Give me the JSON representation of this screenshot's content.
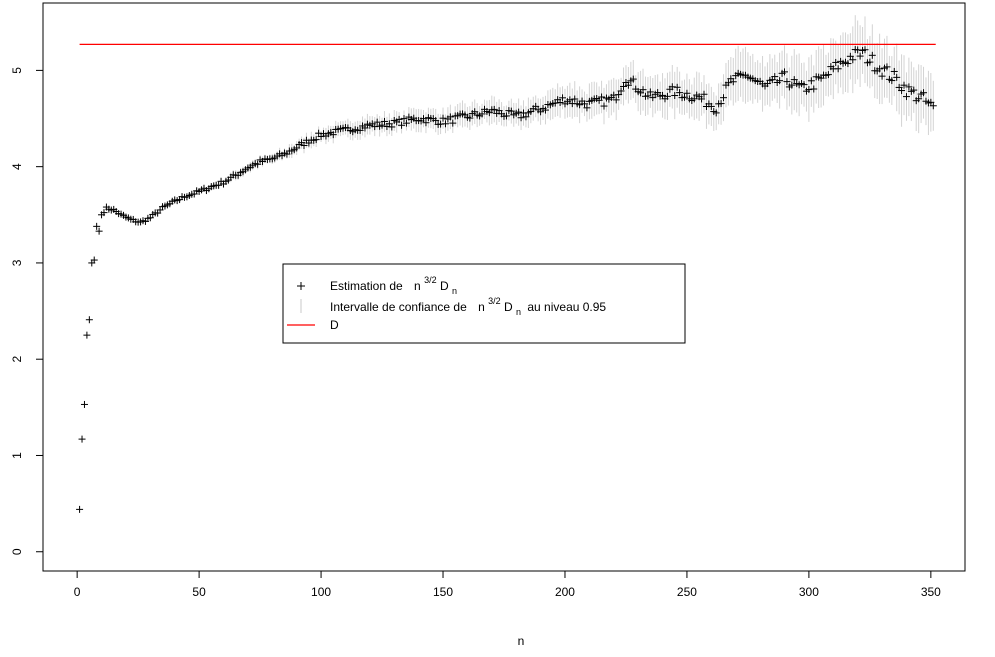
{
  "chart_data": {
    "type": "scatter",
    "title": "",
    "xlabel": "n",
    "ylabel": "",
    "xlim": [
      -14,
      364
    ],
    "ylim": [
      -0.2,
      5.7
    ],
    "x_ticks": [
      0,
      50,
      100,
      150,
      200,
      250,
      300,
      350
    ],
    "y_ticks": [
      0,
      1,
      2,
      3,
      4,
      5
    ],
    "grid": false,
    "legend_position": "center",
    "legend": {
      "estimation": {
        "prefix": "Estimation de",
        "n": "n",
        "sup": "3/2",
        "D": "D",
        "sub": "n",
        "suffix": ""
      },
      "interval": {
        "prefix": "Intervalle de confiance de",
        "n": "n",
        "sup": "3/2",
        "D": "D",
        "sub": "n",
        "suffix": "au niveau 0.95"
      },
      "reference": {
        "label": "D"
      }
    },
    "reference_line": {
      "name": "D",
      "y": 5.27,
      "x_range": [
        1,
        352
      ],
      "color": "#ff0000"
    },
    "series_estimation": {
      "marker": "+",
      "color": "#000000",
      "x_first": 1,
      "x_last": 351,
      "anchors": [
        [
          1,
          0.44
        ],
        [
          2,
          1.17
        ],
        [
          3,
          1.53
        ],
        [
          4,
          2.25
        ],
        [
          5,
          2.41
        ],
        [
          6,
          3.0
        ],
        [
          7,
          3.03
        ],
        [
          8,
          3.38
        ],
        [
          9,
          3.33
        ],
        [
          10,
          3.5
        ],
        [
          12,
          3.57
        ],
        [
          15,
          3.55
        ],
        [
          18,
          3.5
        ],
        [
          22,
          3.45
        ],
        [
          26,
          3.42
        ],
        [
          30,
          3.47
        ],
        [
          35,
          3.57
        ],
        [
          40,
          3.64
        ],
        [
          45,
          3.7
        ],
        [
          50,
          3.74
        ],
        [
          55,
          3.79
        ],
        [
          60,
          3.84
        ],
        [
          65,
          3.91
        ],
        [
          70,
          3.99
        ],
        [
          75,
          4.05
        ],
        [
          80,
          4.08
        ],
        [
          85,
          4.13
        ],
        [
          90,
          4.2
        ],
        [
          95,
          4.27
        ],
        [
          100,
          4.33
        ],
        [
          110,
          4.38
        ],
        [
          120,
          4.43
        ],
        [
          130,
          4.45
        ],
        [
          140,
          4.5
        ],
        [
          150,
          4.47
        ],
        [
          160,
          4.52
        ],
        [
          170,
          4.58
        ],
        [
          180,
          4.52
        ],
        [
          190,
          4.6
        ],
        [
          200,
          4.7
        ],
        [
          210,
          4.65
        ],
        [
          220,
          4.7
        ],
        [
          225,
          4.92
        ],
        [
          235,
          4.72
        ],
        [
          245,
          4.78
        ],
        [
          255,
          4.72
        ],
        [
          262,
          4.62
        ],
        [
          268,
          4.88
        ],
        [
          275,
          4.95
        ],
        [
          282,
          4.82
        ],
        [
          290,
          4.92
        ],
        [
          297,
          4.8
        ],
        [
          305,
          4.9
        ],
        [
          312,
          5.05
        ],
        [
          318,
          5.15
        ],
        [
          322,
          5.18
        ],
        [
          328,
          5.05
        ],
        [
          335,
          4.92
        ],
        [
          341,
          4.78
        ],
        [
          346,
          4.72
        ],
        [
          351,
          4.6
        ]
      ]
    },
    "series_interval": {
      "color": "#d3d3d3",
      "halfwidth_anchors": [
        [
          1,
          0
        ],
        [
          8,
          0.005
        ],
        [
          30,
          0.012
        ],
        [
          100,
          0.07
        ],
        [
          200,
          0.14
        ],
        [
          250,
          0.2
        ],
        [
          300,
          0.26
        ],
        [
          351,
          0.3
        ]
      ]
    }
  }
}
